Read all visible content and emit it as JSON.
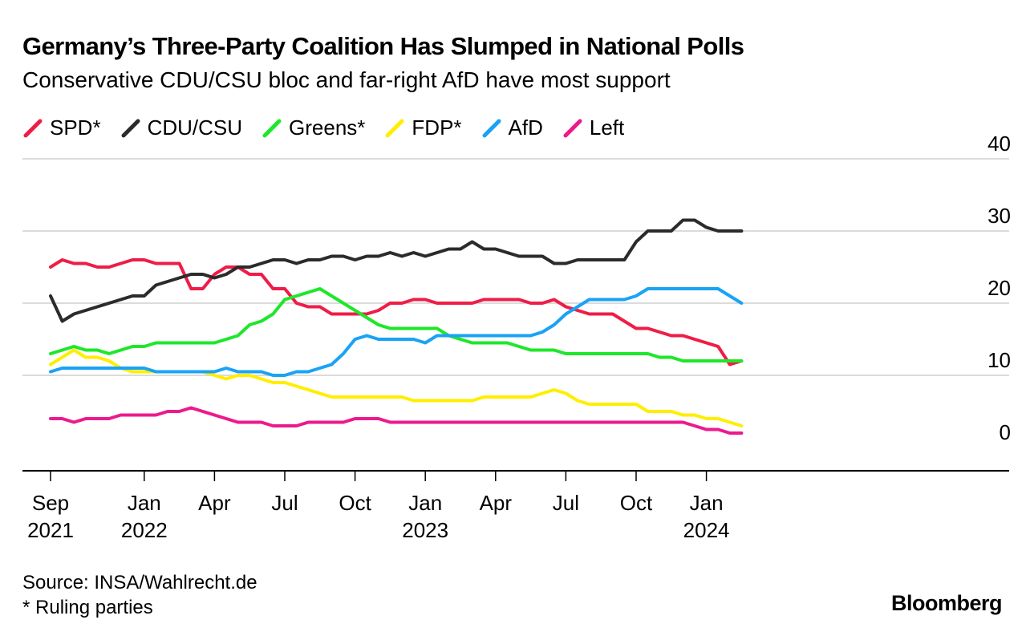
{
  "chart_data": {
    "type": "line",
    "title": "Germany’s Three-Party Coalition Has Slumped in National Polls",
    "subtitle": "Conservative CDU/CSU bloc and far-right AfD have most support",
    "xlabel": "",
    "ylabel": "",
    "ylim": [
      0,
      40
    ],
    "yticks": [
      "0",
      "10",
      "20",
      "30",
      "40"
    ],
    "xticks": [
      {
        "month": 0,
        "label": "Sep",
        "year": "2021"
      },
      {
        "month": 4,
        "label": "Jan",
        "year": "2022"
      },
      {
        "month": 7,
        "label": "Apr",
        "year": ""
      },
      {
        "month": 10,
        "label": "Jul",
        "year": ""
      },
      {
        "month": 13,
        "label": "Oct",
        "year": ""
      },
      {
        "month": 16,
        "label": "Jan",
        "year": "2023"
      },
      {
        "month": 19,
        "label": "Apr",
        "year": ""
      },
      {
        "month": 22,
        "label": "Jul",
        "year": ""
      },
      {
        "month": 25,
        "label": "Oct",
        "year": ""
      },
      {
        "month": 28,
        "label": "Jan",
        "year": "2024"
      }
    ],
    "x_months_since_sep_2021": [
      0,
      0.5,
      1,
      1.5,
      2,
      2.5,
      3,
      3.5,
      4,
      4.5,
      5,
      5.5,
      6,
      6.5,
      7,
      7.5,
      8,
      8.5,
      9,
      9.5,
      10,
      10.5,
      11,
      11.5,
      12,
      12.5,
      13,
      13.5,
      14,
      14.5,
      15,
      15.5,
      16,
      16.5,
      17,
      17.5,
      18,
      18.5,
      19,
      19.5,
      20,
      20.5,
      21,
      21.5,
      22,
      22.5,
      23,
      23.5,
      24,
      24.5,
      25,
      25.5,
      26,
      26.5,
      27,
      27.5,
      28,
      28.5,
      29,
      29.5
    ],
    "series": [
      {
        "name": "SPD*",
        "color": "#ee1d47",
        "values": [
          25,
          26,
          25.5,
          25.5,
          25,
          25,
          25.5,
          26,
          26,
          25.5,
          25.5,
          25.5,
          22,
          22,
          24,
          25,
          25,
          24,
          24,
          22,
          22,
          20,
          19.5,
          19.5,
          18.5,
          18.5,
          18.5,
          18.5,
          19,
          20,
          20,
          20.5,
          20.5,
          20,
          20,
          20,
          20,
          20.5,
          20.5,
          20.5,
          20.5,
          20,
          20,
          20.5,
          19.5,
          19,
          18.5,
          18.5,
          18.5,
          17.5,
          16.5,
          16.5,
          16,
          15.5,
          15.5,
          15,
          14.5,
          14,
          11.5,
          12
        ]
      },
      {
        "name": "CDU/CSU",
        "color": "#2b2b2b",
        "values": [
          21,
          17.5,
          18.5,
          19,
          19.5,
          20,
          20.5,
          21,
          21,
          22.5,
          23,
          23.5,
          24,
          24,
          23.5,
          24,
          25,
          25,
          25.5,
          26,
          26,
          25.5,
          26,
          26,
          26.5,
          26.5,
          26,
          26.5,
          26.5,
          27,
          26.5,
          27,
          26.5,
          27,
          27.5,
          27.5,
          28.5,
          27.5,
          27.5,
          27,
          26.5,
          26.5,
          26.5,
          25.5,
          25.5,
          26,
          26,
          26,
          26,
          26,
          28.5,
          30,
          30,
          30,
          31.5,
          31.5,
          30.5,
          30,
          30,
          30
        ]
      },
      {
        "name": "Greens*",
        "color": "#1ee72a",
        "values": [
          13,
          13.5,
          14,
          13.5,
          13.5,
          13,
          13.5,
          14,
          14,
          14.5,
          14.5,
          14.5,
          14.5,
          14.5,
          14.5,
          15,
          15.5,
          17,
          17.5,
          18.5,
          20.5,
          21,
          21.5,
          22,
          21,
          20,
          19,
          18,
          17,
          16.5,
          16.5,
          16.5,
          16.5,
          16.5,
          15.5,
          15,
          14.5,
          14.5,
          14.5,
          14.5,
          14,
          13.5,
          13.5,
          13.5,
          13,
          13,
          13,
          13,
          13,
          13,
          13,
          13,
          12.5,
          12.5,
          12,
          12,
          12,
          12,
          12,
          12
        ]
      },
      {
        "name": "FDP*",
        "color": "#ffee00",
        "values": [
          11.5,
          12.5,
          13.5,
          12.5,
          12.5,
          12,
          11,
          10.5,
          10.5,
          10.5,
          10.5,
          10.5,
          10.5,
          10.5,
          10,
          9.5,
          10,
          10,
          9.5,
          9,
          9,
          8.5,
          8,
          7.5,
          7,
          7,
          7,
          7,
          7,
          7,
          7,
          6.5,
          6.5,
          6.5,
          6.5,
          6.5,
          6.5,
          7,
          7,
          7,
          7,
          7,
          7.5,
          8,
          7.5,
          6.5,
          6,
          6,
          6,
          6,
          6,
          5,
          5,
          5,
          4.5,
          4.5,
          4,
          4,
          3.5,
          3
        ]
      },
      {
        "name": "AfD",
        "color": "#1aa3f5",
        "values": [
          10.5,
          11,
          11,
          11,
          11,
          11,
          11,
          11,
          11,
          10.5,
          10.5,
          10.5,
          10.5,
          10.5,
          10.5,
          11,
          10.5,
          10.5,
          10.5,
          10,
          10,
          10.5,
          10.5,
          11,
          11.5,
          13,
          15,
          15.5,
          15,
          15,
          15,
          15,
          14.5,
          15.5,
          15.5,
          15.5,
          15.5,
          15.5,
          15.5,
          15.5,
          15.5,
          15.5,
          16,
          17,
          18.5,
          19.5,
          20.5,
          20.5,
          20.5,
          20.5,
          21,
          22,
          22,
          22,
          22,
          22,
          22,
          22,
          21,
          20
        ]
      },
      {
        "name": "Left",
        "color": "#ec1a8d",
        "values": [
          4,
          4,
          3.5,
          4,
          4,
          4,
          4.5,
          4.5,
          4.5,
          4.5,
          5,
          5,
          5.5,
          5,
          4.5,
          4,
          3.5,
          3.5,
          3.5,
          3,
          3,
          3,
          3.5,
          3.5,
          3.5,
          3.5,
          4,
          4,
          4,
          3.5,
          3.5,
          3.5,
          3.5,
          3.5,
          3.5,
          3.5,
          3.5,
          3.5,
          3.5,
          3.5,
          3.5,
          3.5,
          3.5,
          3.5,
          3.5,
          3.5,
          3.5,
          3.5,
          3.5,
          3.5,
          3.5,
          3.5,
          3.5,
          3.5,
          3.5,
          3,
          2.5,
          2.5,
          2,
          2
        ]
      }
    ]
  },
  "footer": {
    "source": "Source: INSA/Wahlrecht.de",
    "note": "* Ruling parties",
    "brand": "Bloomberg"
  }
}
